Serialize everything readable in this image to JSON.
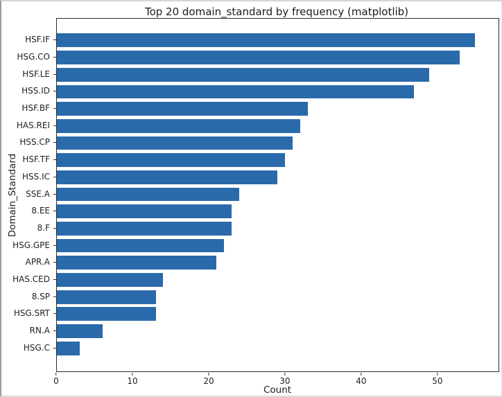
{
  "figure": {
    "background": "#ffffff",
    "outer_border_color": "#9a9a9a",
    "spine_color": "#2b2b2b",
    "text_color": "#1a1a1a",
    "bar_color": "#2a6aab"
  },
  "chart_data": {
    "type": "bar",
    "orientation": "horizontal",
    "title": "Top 20 domain_standard by frequency (matplotlib)",
    "xlabel": "Count",
    "ylabel": "Domain_Standard",
    "categories": [
      "HSF.IF",
      "HSG.CO",
      "HSF.LE",
      "HSS.ID",
      "HSF.BF",
      "HAS.REI",
      "HSS.CP",
      "HSF.TF",
      "HSS.IC",
      "SSE.A",
      "8.EE",
      "8.F",
      "HSG.GPE",
      "APR.A",
      "HAS.CED",
      "8.SP",
      "HSG.SRT",
      "RN.A",
      "HSG.C"
    ],
    "values": [
      55,
      53,
      49,
      47,
      33,
      32,
      31,
      30,
      29,
      24,
      23,
      23,
      22,
      21,
      14,
      13,
      13,
      6,
      3
    ],
    "xticks": [
      0,
      10,
      20,
      30,
      40,
      50
    ],
    "xlim": [
      0,
      58.1
    ],
    "grid": false,
    "legend": "none"
  }
}
